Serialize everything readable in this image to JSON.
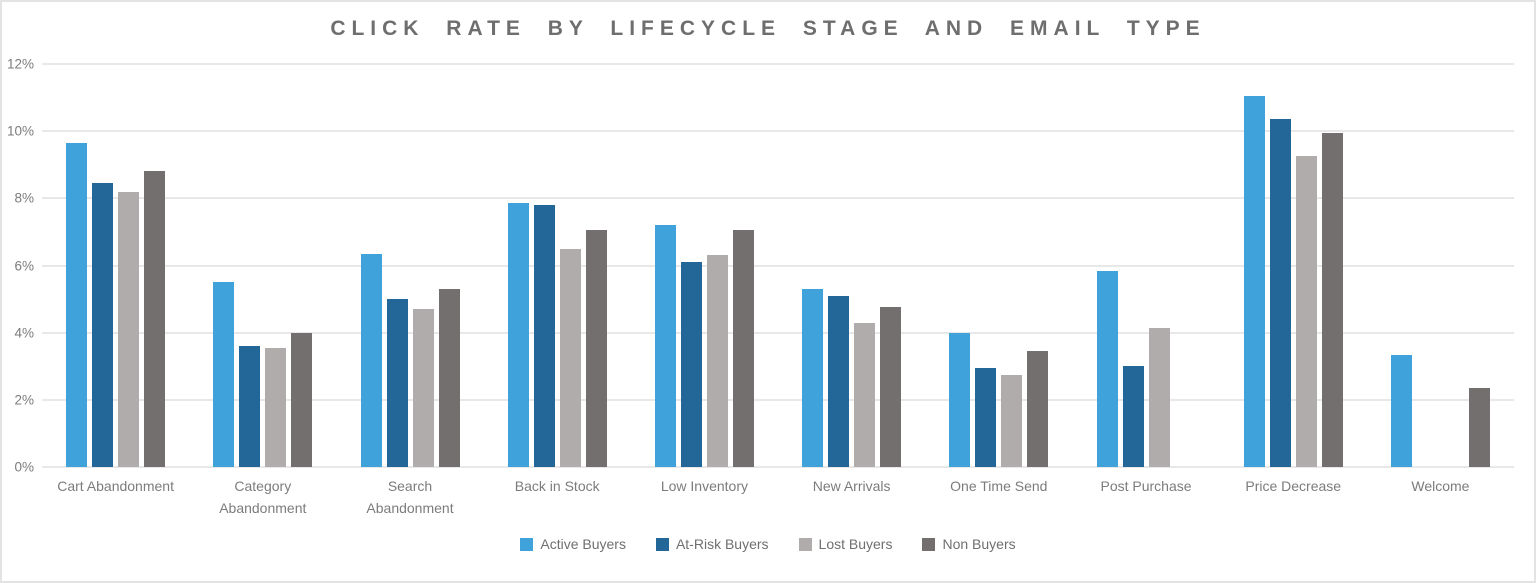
{
  "chart_data": {
    "type": "bar",
    "title": "CLICK RATE BY LIFECYCLE STAGE AND EMAIL TYPE",
    "xlabel": "",
    "ylabel": "",
    "ylim": [
      0,
      12
    ],
    "yticks": [
      0,
      2,
      4,
      6,
      8,
      10,
      12
    ],
    "ytick_labels": [
      "0%",
      "2%",
      "4%",
      "6%",
      "8%",
      "10%",
      "12%"
    ],
    "grid": true,
    "legend_position": "bottom",
    "categories": [
      "Cart Abandonment",
      "Category Abandonment",
      "Search Abandonment",
      "Back in Stock",
      "Low Inventory",
      "New Arrivals",
      "One Time Send",
      "Post Purchase",
      "Price Decrease",
      "Welcome"
    ],
    "series": [
      {
        "name": "Active Buyers",
        "color": "#3fa2db",
        "values": [
          9.65,
          5.5,
          6.35,
          7.85,
          7.2,
          5.3,
          4.0,
          5.85,
          11.05,
          3.35
        ]
      },
      {
        "name": "At-Risk Buyers",
        "color": "#236799",
        "values": [
          8.45,
          3.6,
          5.0,
          7.8,
          6.1,
          5.1,
          2.95,
          3.0,
          10.35,
          null
        ]
      },
      {
        "name": "Lost Buyers",
        "color": "#b0acab",
        "values": [
          8.2,
          3.55,
          4.7,
          6.5,
          6.3,
          4.3,
          2.75,
          4.15,
          9.25,
          null
        ]
      },
      {
        "name": "Non Buyers",
        "color": "#726f6e",
        "values": [
          8.8,
          4.0,
          5.3,
          7.05,
          7.05,
          4.75,
          3.45,
          null,
          9.95,
          2.35
        ]
      }
    ]
  },
  "colors": {
    "grid": "#e8e8e8",
    "axis_text": "#7b7b7b",
    "title_text": "#6e6e6e",
    "border": "#e3e3e3"
  }
}
